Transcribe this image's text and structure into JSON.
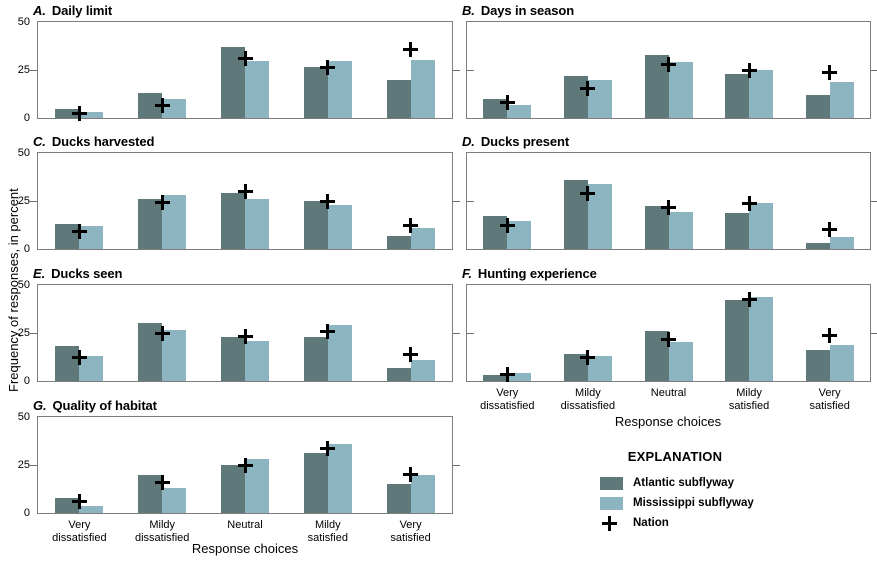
{
  "figure": {
    "colors": {
      "atlantic": "#5f7879",
      "mississippi": "#8cb5c1",
      "nation": "#000000",
      "frame": "#7d7d7d"
    },
    "legend": {
      "title": "EXPLANATION",
      "items": [
        {
          "label": "Atlantic subflyway",
          "marker": "swatch",
          "color": "#5f7879"
        },
        {
          "label": "Mississippi subflyway",
          "marker": "swatch",
          "color": "#8cb5c1"
        },
        {
          "label": "Nation",
          "marker": "plus",
          "color": "#000000"
        }
      ]
    }
  },
  "chart_data": {
    "type": "bar",
    "ylabel": "Frequency of responses, in percent",
    "xlabel": "Response choices",
    "ylim": [
      0,
      50
    ],
    "yticks": [
      0,
      25,
      50
    ],
    "categories": [
      "Very dissatisfied",
      "Mildy dissatisfied",
      "Neutral",
      "Mildy satisfied",
      "Very satisfied"
    ],
    "series_names": [
      "Atlantic subflyway",
      "Mississippi subflyway",
      "Nation"
    ],
    "panels": [
      {
        "id": "A",
        "letter": "A.",
        "title": "Daily limit",
        "column": "left",
        "row": 0,
        "show_x_labels": false,
        "atlantic": [
          4.5,
          13,
          37,
          26.5,
          20
        ],
        "mississippi": [
          3,
          10,
          29.5,
          29.5,
          30
        ],
        "nation": [
          2.5,
          6.5,
          31,
          26.5,
          35.5
        ]
      },
      {
        "id": "B",
        "letter": "B.",
        "title": "Days in season",
        "column": "right",
        "row": 0,
        "show_x_labels": false,
        "atlantic": [
          10,
          22,
          33,
          23,
          12
        ],
        "mississippi": [
          7,
          20,
          29,
          25,
          18.5
        ],
        "nation": [
          8,
          15.5,
          28,
          24.5,
          23.5
        ]
      },
      {
        "id": "C",
        "letter": "C.",
        "title": "Ducks harvested",
        "column": "left",
        "row": 1,
        "show_x_labels": false,
        "atlantic": [
          13,
          26,
          29,
          25,
          7
        ],
        "mississippi": [
          12,
          28,
          26,
          23,
          11
        ],
        "nation": [
          9,
          24,
          30,
          25,
          12
        ]
      },
      {
        "id": "D",
        "letter": "D.",
        "title": "Ducks present",
        "column": "right",
        "row": 1,
        "show_x_labels": false,
        "atlantic": [
          17,
          36,
          22.5,
          18.5,
          3
        ],
        "mississippi": [
          14.5,
          34,
          19.5,
          24,
          6
        ],
        "nation": [
          12,
          29,
          21.5,
          23.5,
          10
        ]
      },
      {
        "id": "E",
        "letter": "E.",
        "title": "Ducks seen",
        "column": "left",
        "row": 2,
        "show_x_labels": false,
        "atlantic": [
          18,
          30,
          23,
          23,
          7
        ],
        "mississippi": [
          13,
          26.5,
          21,
          29,
          11
        ],
        "nation": [
          12.5,
          25,
          23,
          26,
          14
        ]
      },
      {
        "id": "F",
        "letter": "F.",
        "title": "Hunting experience",
        "column": "right",
        "row": 2,
        "show_x_labels": true,
        "atlantic": [
          3,
          14,
          26,
          42,
          16
        ],
        "mississippi": [
          4,
          13,
          20.5,
          44,
          19
        ],
        "nation": [
          3.5,
          12,
          21.5,
          42.5,
          23.5
        ]
      },
      {
        "id": "G",
        "letter": "G.",
        "title": "Quality of habitat",
        "column": "left",
        "row": 3,
        "show_x_labels": true,
        "atlantic": [
          8,
          20,
          25,
          31,
          15
        ],
        "mississippi": [
          3.5,
          13,
          28,
          36,
          20
        ],
        "nation": [
          6,
          16,
          25,
          33.5,
          20
        ]
      }
    ]
  }
}
